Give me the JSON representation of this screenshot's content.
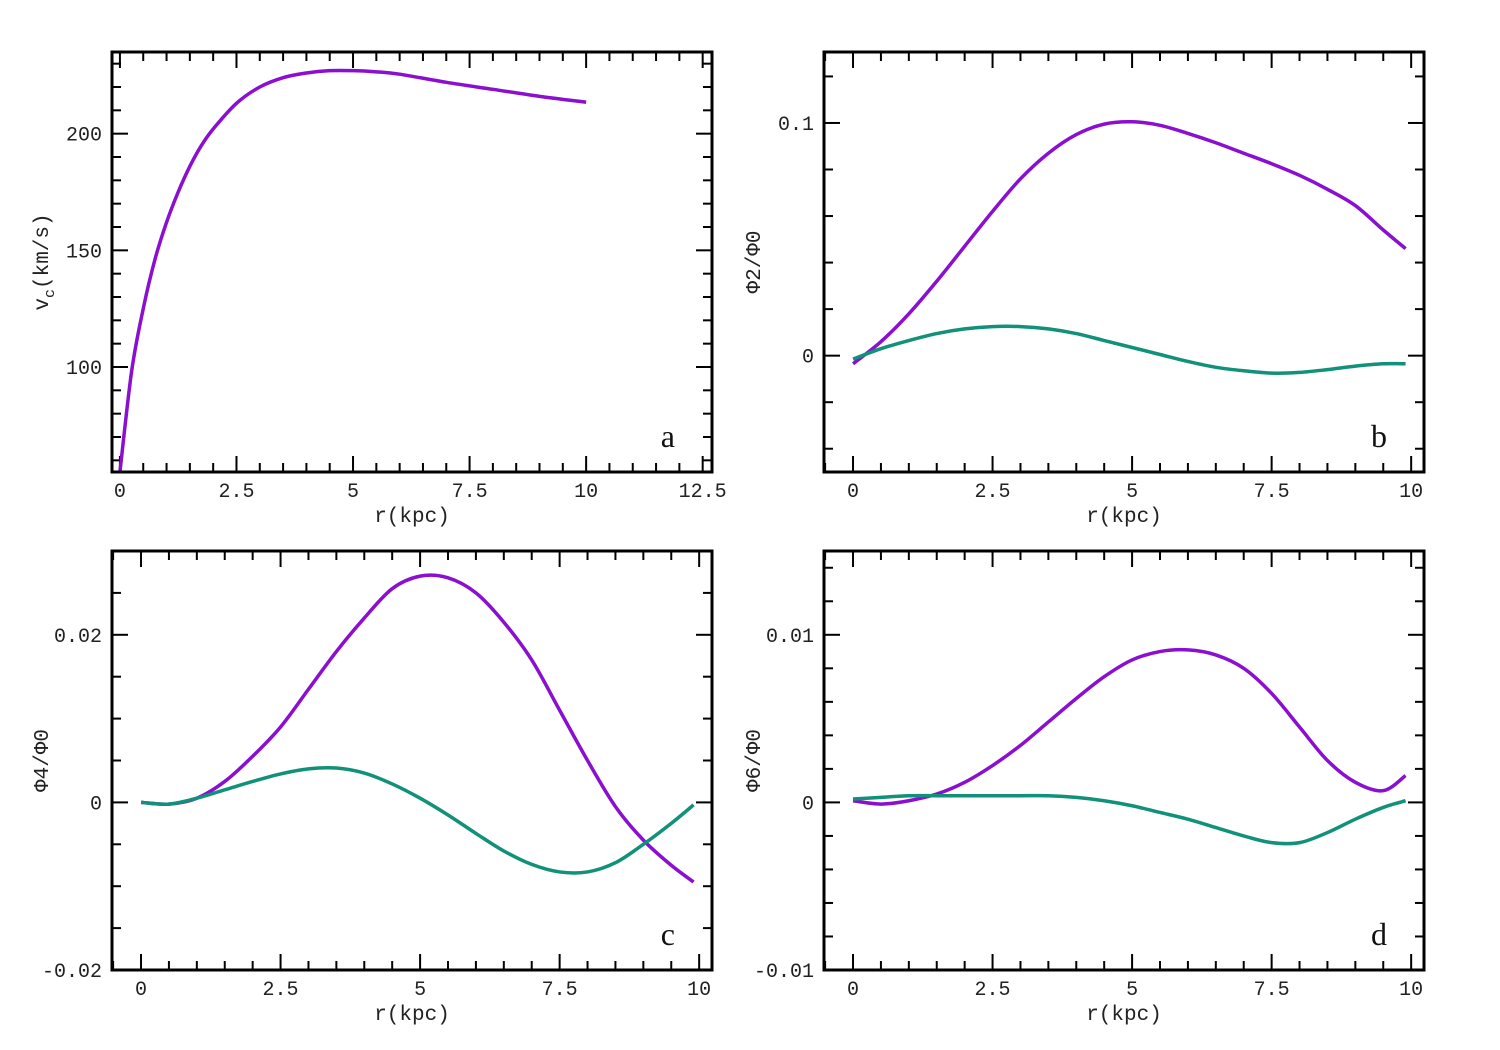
{
  "chart_data": [
    {
      "panel": "a",
      "type": "line",
      "xlabel": "r(kpc)",
      "ylabel": "v_c(km/s)",
      "ylabel_main": "v",
      "ylabel_sub": "c",
      "ylabel_rest": "(km/s)",
      "xlim": [
        -0.17,
        12.7
      ],
      "ylim": [
        55,
        235
      ],
      "xticks": [
        0,
        2.5,
        5,
        7.5,
        10,
        12.5
      ],
      "xtick_labels": [
        "0",
        "2.5",
        "5",
        "7.5",
        "10",
        "12.5"
      ],
      "x_minor_step": 0.5,
      "yticks": [
        100,
        150,
        200
      ],
      "ytick_labels": [
        "100",
        "150",
        "200"
      ],
      "y_minor_step": 10,
      "series": [
        {
          "name": "vc",
          "color": "#8a0fd0",
          "x": [
            0,
            0.25,
            0.5,
            0.75,
            1.0,
            1.25,
            1.5,
            1.75,
            2.0,
            2.5,
            3.0,
            3.5,
            4.0,
            4.5,
            5.0,
            5.5,
            6.0,
            7.0,
            8.0,
            9.0,
            10.0
          ],
          "y": [
            55,
            98,
            125,
            146,
            162,
            175,
            186,
            195,
            202,
            213,
            220,
            224,
            226,
            227,
            227,
            226.5,
            225.5,
            222,
            219,
            216,
            213.5
          ]
        }
      ],
      "tag": "a"
    },
    {
      "panel": "b",
      "type": "line",
      "xlabel": "r(kpc)",
      "ylabel": "Φ2/Φ0",
      "xlim": [
        -0.52,
        10.23
      ],
      "ylim": [
        -0.05,
        0.1305
      ],
      "xticks": [
        0,
        2.5,
        5,
        7.5,
        10
      ],
      "xtick_labels": [
        "0",
        "2.5",
        "5",
        "7.5",
        "10"
      ],
      "x_minor_step": 0.5,
      "yticks": [
        0,
        0.1
      ],
      "ytick_labels": [
        "0",
        "0.1"
      ],
      "y_minor_step": 0.02,
      "series": [
        {
          "name": "purple",
          "color": "#8a0fd0",
          "x": [
            0,
            0.5,
            1.0,
            1.5,
            2.0,
            2.5,
            3.0,
            3.5,
            4.0,
            4.5,
            5.0,
            5.5,
            6.0,
            6.5,
            7.0,
            7.5,
            8.0,
            8.5,
            9.0,
            9.5,
            9.9
          ],
          "y": [
            -0.0035,
            0.006,
            0.018,
            0.032,
            0.047,
            0.062,
            0.076,
            0.087,
            0.095,
            0.0995,
            0.1005,
            0.099,
            0.0955,
            0.0915,
            0.087,
            0.0825,
            0.0775,
            0.0715,
            0.0645,
            0.054,
            0.046
          ]
        },
        {
          "name": "green",
          "color": "#119179",
          "x": [
            0,
            0.5,
            1.0,
            1.5,
            2.0,
            2.5,
            3.0,
            3.5,
            4.0,
            4.5,
            5.0,
            5.5,
            6.0,
            6.5,
            7.0,
            7.5,
            8.0,
            8.5,
            9.0,
            9.5,
            9.9
          ],
          "y": [
            -0.0015,
            0.003,
            0.0065,
            0.0095,
            0.0115,
            0.0125,
            0.0125,
            0.0115,
            0.0095,
            0.0065,
            0.0035,
            0.0005,
            -0.0025,
            -0.005,
            -0.0065,
            -0.0075,
            -0.0072,
            -0.006,
            -0.0045,
            -0.0035,
            -0.0035
          ]
        }
      ],
      "tag": "b"
    },
    {
      "panel": "c",
      "type": "line",
      "xlabel": "r(kpc)",
      "ylabel": "Φ4/Φ0",
      "xlim": [
        -0.52,
        10.23
      ],
      "ylim": [
        -0.02,
        0.03
      ],
      "xticks": [
        0,
        2.5,
        5,
        7.5,
        10
      ],
      "xtick_labels": [
        "0",
        "2.5",
        "5",
        "7.5",
        "10"
      ],
      "x_minor_step": 0.5,
      "yticks": [
        -0.02,
        0,
        0.02
      ],
      "ytick_labels": [
        "-0.02",
        "0",
        "0.02"
      ],
      "y_minor_step": 0.005,
      "series": [
        {
          "name": "purple",
          "color": "#8a0fd0",
          "x": [
            0,
            0.5,
            1.0,
            1.5,
            2.0,
            2.5,
            3.0,
            3.5,
            4.0,
            4.5,
            5.0,
            5.5,
            6.0,
            6.5,
            7.0,
            7.5,
            8.0,
            8.5,
            9.0,
            9.5,
            9.9
          ],
          "y": [
            0,
            -0.0002,
            0.0005,
            0.0025,
            0.0055,
            0.009,
            0.0135,
            0.018,
            0.022,
            0.0255,
            0.027,
            0.0268,
            0.025,
            0.0215,
            0.017,
            0.011,
            0.005,
            -0.0005,
            -0.0045,
            -0.0075,
            -0.0095
          ]
        },
        {
          "name": "green",
          "color": "#119179",
          "x": [
            0,
            0.5,
            1.0,
            1.5,
            2.0,
            2.5,
            3.0,
            3.5,
            4.0,
            4.5,
            5.0,
            5.5,
            6.0,
            6.5,
            7.0,
            7.5,
            8.0,
            8.5,
            9.0,
            9.5,
            9.9
          ],
          "y": [
            0,
            -0.0002,
            0.0005,
            0.0015,
            0.0025,
            0.0034,
            0.004,
            0.0041,
            0.0035,
            0.0022,
            0.0005,
            -0.0015,
            -0.0037,
            -0.0058,
            -0.0074,
            -0.0083,
            -0.0083,
            -0.0072,
            -0.005,
            -0.0025,
            -0.0003
          ]
        }
      ],
      "tag": "c"
    },
    {
      "panel": "d",
      "type": "line",
      "xlabel": "r(kpc)",
      "ylabel": "Φ6/Φ0",
      "xlim": [
        -0.52,
        10.23
      ],
      "ylim": [
        -0.01,
        0.015
      ],
      "xticks": [
        0,
        2.5,
        5,
        7.5,
        10
      ],
      "xtick_labels": [
        "0",
        "2.5",
        "5",
        "7.5",
        "10"
      ],
      "x_minor_step": 0.5,
      "yticks": [
        -0.01,
        0,
        0.01
      ],
      "ytick_labels": [
        "-0.01",
        "0",
        "0.01"
      ],
      "y_minor_step": 0.002,
      "series": [
        {
          "name": "purple",
          "color": "#8a0fd0",
          "x": [
            0,
            0.5,
            1.0,
            1.5,
            2.0,
            2.5,
            3.0,
            3.5,
            4.0,
            4.5,
            5.0,
            5.5,
            6.0,
            6.5,
            7.0,
            7.5,
            8.0,
            8.5,
            9.0,
            9.5,
            9.9
          ],
          "y": [
            0.0001,
            -0.0001,
            0.0001,
            0.0005,
            0.0012,
            0.0022,
            0.0034,
            0.0048,
            0.0062,
            0.0075,
            0.0085,
            0.009,
            0.0091,
            0.0088,
            0.008,
            0.0065,
            0.0045,
            0.0025,
            0.0012,
            0.0007,
            0.0016
          ]
        },
        {
          "name": "green",
          "color": "#119179",
          "x": [
            0,
            0.5,
            1.0,
            1.5,
            2.0,
            2.5,
            3.0,
            3.5,
            4.0,
            4.5,
            5.0,
            5.5,
            6.0,
            6.5,
            7.0,
            7.5,
            8.0,
            8.5,
            9.0,
            9.5,
            9.9
          ],
          "y": [
            0.0002,
            0.0003,
            0.0004,
            0.0004,
            0.0004,
            0.0004,
            0.0004,
            0.0004,
            0.0003,
            0.0001,
            -0.0002,
            -0.0006,
            -0.001,
            -0.0015,
            -0.002,
            -0.0024,
            -0.0024,
            -0.0018,
            -0.001,
            -0.0003,
            0.0001
          ]
        }
      ],
      "tag": "d"
    }
  ]
}
